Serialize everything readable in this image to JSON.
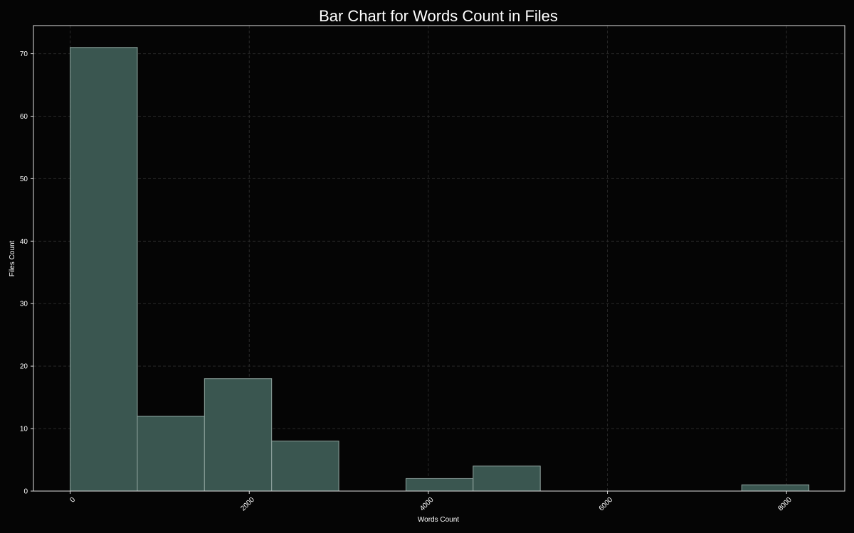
{
  "chart_data": {
    "type": "bar",
    "title": "Bar Chart for Words Count in Files",
    "xlabel": "Words Count",
    "ylabel": "Files Count",
    "bins": [
      {
        "start": 0,
        "end": 750,
        "count": 71
      },
      {
        "start": 750,
        "end": 1500,
        "count": 12
      },
      {
        "start": 1500,
        "end": 2250,
        "count": 18
      },
      {
        "start": 2250,
        "end": 3000,
        "count": 8
      },
      {
        "start": 3000,
        "end": 3750,
        "count": 0
      },
      {
        "start": 3750,
        "end": 4500,
        "count": 2
      },
      {
        "start": 4500,
        "end": 5250,
        "count": 4
      },
      {
        "start": 5250,
        "end": 6000,
        "count": 0
      },
      {
        "start": 6000,
        "end": 6750,
        "count": 0
      },
      {
        "start": 6750,
        "end": 7500,
        "count": 0
      },
      {
        "start": 7500,
        "end": 8250,
        "count": 1
      }
    ],
    "xlim": [
      -410,
      8650
    ],
    "ylim": [
      0,
      74.5
    ],
    "xticks": [
      0,
      2000,
      4000,
      6000,
      8000
    ],
    "xtick_labels": [
      "0",
      "2000",
      "4000",
      "6000",
      "8000"
    ],
    "yticks": [
      0,
      10,
      20,
      30,
      40,
      50,
      60,
      70
    ],
    "ytick_labels": [
      "0",
      "10",
      "20",
      "30",
      "40",
      "50",
      "60",
      "70"
    ],
    "grid": true,
    "colors": {
      "background": "#050505",
      "bar_fill": "#3a5650",
      "bar_edge": "#8fa39e",
      "axis": "#e0e0e0",
      "grid": "#2a2a2a",
      "text": "#ffffff"
    }
  }
}
